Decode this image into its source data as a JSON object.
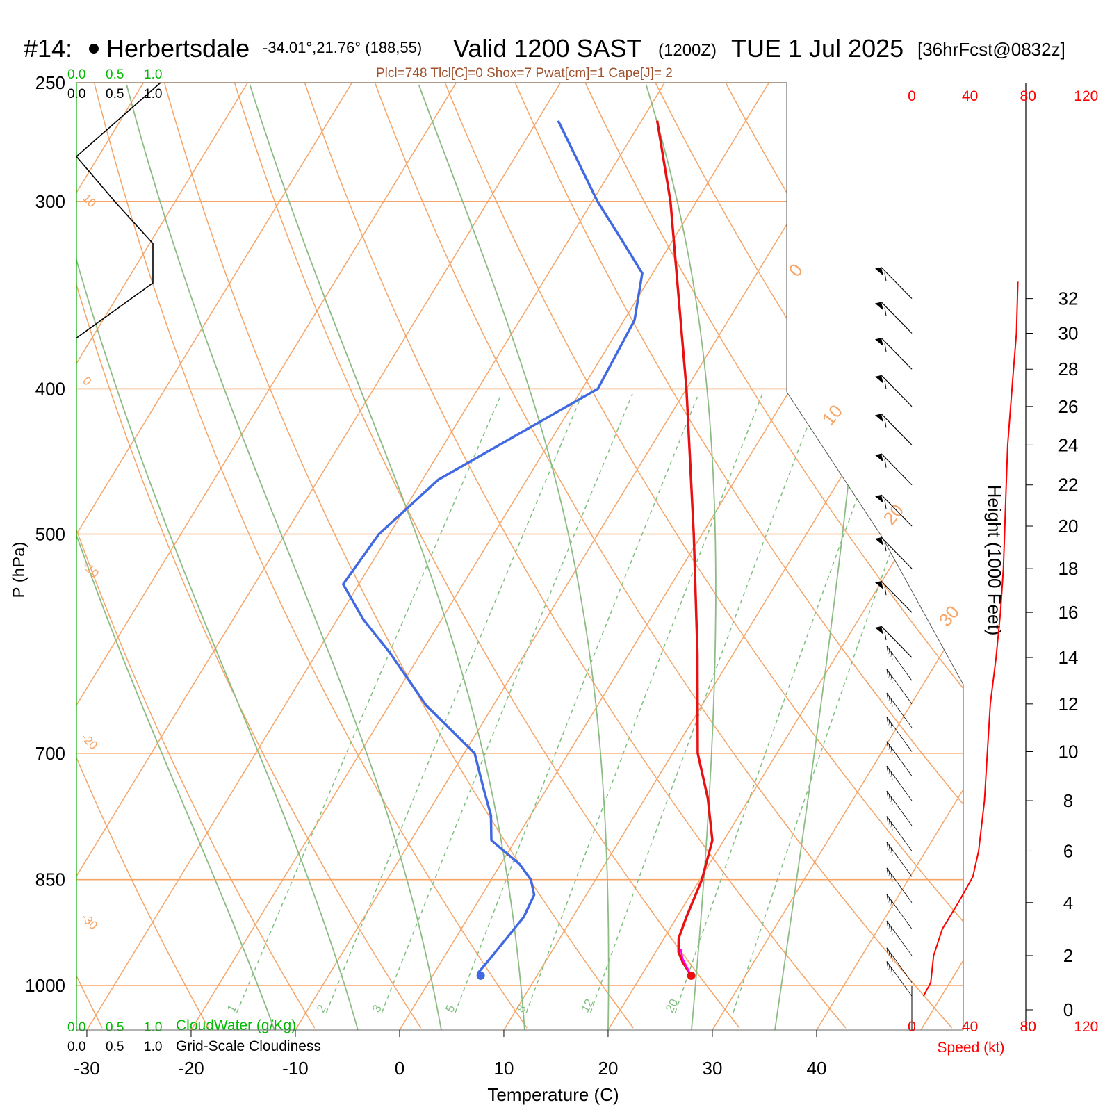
{
  "header": {
    "station_id": "#14:",
    "station_name": "Herbertsdale",
    "coords": "-34.01°,21.76° (188,55)",
    "valid": "Valid 1200 SAST",
    "zulu": "(1200Z)",
    "date": "TUE 1 Jul 2025",
    "forecast": "[36hrFcst@0832z]",
    "indices": "Plcl=748 Tlcl[C]=0 Shox=7 Pwat[cm]=1 Cape[J]= 2"
  },
  "legend": {
    "cloudwater_label": "CloudWater (g/Kg)",
    "cloudiness_label": "Grid-Scale Cloudiness",
    "scale_ticks": [
      "0.0",
      "0.5",
      "1.0"
    ]
  },
  "chart_data": {
    "type": "skewt",
    "xlabel": "Temperature (C)",
    "ylabel": "P (hPa)",
    "right_label": "Height (1000 Feet)",
    "speed_label": "Speed (kt)",
    "x_ticks": [
      -30,
      -20,
      -10,
      0,
      10,
      20,
      30,
      40
    ],
    "p_ticks": [
      250,
      300,
      400,
      500,
      700,
      850,
      1000
    ],
    "height_ticks": [
      0,
      2,
      4,
      6,
      8,
      10,
      12,
      14,
      16,
      18,
      20,
      22,
      24,
      26,
      28,
      30,
      32
    ],
    "speed_ticks": [
      "0",
      "40",
      "80",
      "120"
    ],
    "isotherm_labels": [
      "0",
      "10",
      "20",
      "30",
      "0",
      "-10",
      "-20",
      "-30",
      "10"
    ],
    "mixing_ratio_labels": [
      "1",
      "2",
      "3",
      "5",
      "8",
      "12",
      "20"
    ],
    "temperature": [
      {
        "p": 985,
        "t": 24.8
      },
      {
        "p": 975,
        "t": 24.0
      },
      {
        "p": 965,
        "t": 23.2
      },
      {
        "p": 950,
        "t": 22.2
      },
      {
        "p": 930,
        "t": 21.4
      },
      {
        "p": 900,
        "t": 20.9
      },
      {
        "p": 850,
        "t": 20.2
      },
      {
        "p": 800,
        "t": 18.9
      },
      {
        "p": 750,
        "t": 16.0
      },
      {
        "p": 700,
        "t": 12.4
      },
      {
        "p": 600,
        "t": 6.5
      },
      {
        "p": 500,
        "t": -0.8
      },
      {
        "p": 400,
        "t": -10.0
      },
      {
        "p": 300,
        "t": -22.5
      },
      {
        "p": 265,
        "t": -28.5
      }
    ],
    "dewpoint": [
      {
        "p": 985,
        "t": 4.6
      },
      {
        "p": 980,
        "t": 4.2
      },
      {
        "p": 960,
        "t": 4.5
      },
      {
        "p": 900,
        "t": 5.3
      },
      {
        "p": 870,
        "t": 5.0
      },
      {
        "p": 850,
        "t": 3.8
      },
      {
        "p": 830,
        "t": 1.8
      },
      {
        "p": 800,
        "t": -2.3
      },
      {
        "p": 770,
        "t": -3.8
      },
      {
        "p": 740,
        "t": -6.0
      },
      {
        "p": 700,
        "t": -9.0
      },
      {
        "p": 650,
        "t": -16.5
      },
      {
        "p": 600,
        "t": -23.0
      },
      {
        "p": 570,
        "t": -27.5
      },
      {
        "p": 540,
        "t": -31.5
      },
      {
        "p": 500,
        "t": -31.0
      },
      {
        "p": 460,
        "t": -28.5
      },
      {
        "p": 400,
        "t": -18.5
      },
      {
        "p": 360,
        "t": -19.0
      },
      {
        "p": 335,
        "t": -21.0
      },
      {
        "p": 320,
        "t": -24.5
      },
      {
        "p": 300,
        "t": -29.5
      },
      {
        "p": 265,
        "t": -38.0
      }
    ],
    "parcel": [
      {
        "p": 985,
        "t": 24.8
      },
      {
        "p": 960,
        "t": 23.0
      },
      {
        "p": 945,
        "t": 22.2
      }
    ],
    "cloudiness_profile": [
      {
        "p": 250,
        "v": 0.55
      },
      {
        "p": 280,
        "v": 0.0
      },
      {
        "p": 300,
        "v": 0.25
      },
      {
        "p": 320,
        "v": 0.5
      },
      {
        "p": 340,
        "v": 0.5
      },
      {
        "p": 370,
        "v": 0.0
      }
    ],
    "wind_speed_profile": [
      {
        "h": 0.5,
        "kt": 8
      },
      {
        "h": 1,
        "kt": 13
      },
      {
        "h": 2,
        "kt": 15
      },
      {
        "h": 3,
        "kt": 21
      },
      {
        "h": 4,
        "kt": 32
      },
      {
        "h": 5,
        "kt": 42
      },
      {
        "h": 6,
        "kt": 46
      },
      {
        "h": 7,
        "kt": 48
      },
      {
        "h": 8,
        "kt": 50
      },
      {
        "h": 10,
        "kt": 52
      },
      {
        "h": 12,
        "kt": 54
      },
      {
        "h": 14,
        "kt": 58
      },
      {
        "h": 16,
        "kt": 61
      },
      {
        "h": 18,
        "kt": 63
      },
      {
        "h": 20,
        "kt": 64
      },
      {
        "h": 22,
        "kt": 65
      },
      {
        "h": 24,
        "kt": 66
      },
      {
        "h": 26,
        "kt": 68
      },
      {
        "h": 28,
        "kt": 70
      },
      {
        "h": 30,
        "kt": 72
      },
      {
        "h": 33,
        "kt": 73
      }
    ],
    "wind_barb_heights": [
      0.5,
      1,
      2,
      3,
      4,
      5,
      6,
      7,
      8,
      9,
      10,
      11,
      12,
      13,
      14,
      16,
      18,
      20,
      22,
      24,
      26,
      28,
      30,
      32
    ]
  },
  "colors": {
    "temperature": "#e81010",
    "dewpoint": "#4169e1",
    "parcel": "#ff00ff",
    "isotherm": "#f5a466",
    "moist_adiabat": "#8cbc84",
    "mixing_ratio": "#7fbf7f",
    "cloudwater": "#00bb00",
    "speed": "#ff0000",
    "indices": "#a0522d"
  }
}
